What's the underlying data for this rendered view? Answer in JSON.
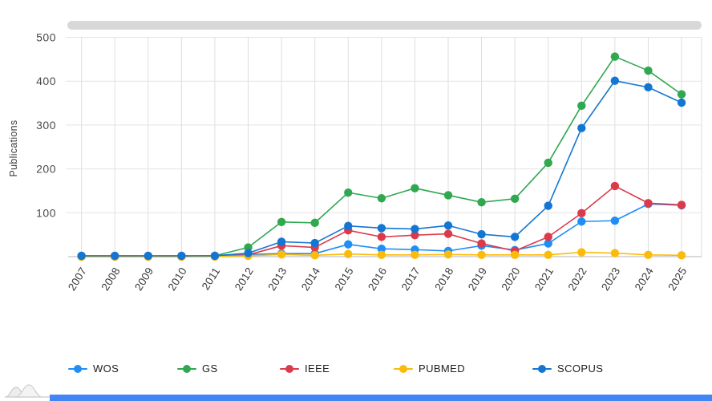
{
  "chart_data": {
    "type": "line",
    "title": "",
    "x": [
      "2007",
      "2008",
      "2009",
      "2010",
      "2011",
      "2012",
      "2013",
      "2014",
      "2015",
      "2016",
      "2017",
      "2018",
      "2019",
      "2020",
      "2021",
      "2022",
      "2023",
      "2024",
      "2025"
    ],
    "series": [
      {
        "name": "WOS",
        "color": "#1f8ef5",
        "values": [
          1,
          1,
          1,
          1,
          1,
          5,
          7,
          7,
          28,
          18,
          16,
          13,
          25,
          15,
          30,
          80,
          82,
          120,
          117
        ]
      },
      {
        "name": "GS",
        "color": "#2fa84f",
        "values": [
          1,
          1,
          1,
          1,
          2,
          21,
          79,
          77,
          146,
          133,
          156,
          140,
          124,
          132,
          214,
          344,
          456,
          424,
          370
        ]
      },
      {
        "name": "IEEE",
        "color": "#dc3a4b",
        "values": [
          0,
          0,
          0,
          0,
          1,
          4,
          25,
          21,
          60,
          45,
          49,
          52,
          30,
          13,
          45,
          99,
          161,
          122,
          118
        ]
      },
      {
        "name": "PUBMED",
        "color": "#fcbb0a",
        "values": [
          0,
          0,
          0,
          0,
          0,
          2,
          5,
          3,
          6,
          4,
          4,
          5,
          4,
          4,
          4,
          10,
          8,
          4,
          3
        ]
      },
      {
        "name": "SCOPUS",
        "color": "#1376d2",
        "values": [
          2,
          2,
          2,
          2,
          2,
          8,
          34,
          31,
          70,
          65,
          63,
          71,
          51,
          45,
          116,
          293,
          401,
          386,
          351
        ]
      }
    ],
    "xlabel": "",
    "ylabel": "Publications",
    "ylim": [
      0,
      520
    ],
    "yticks": [
      100,
      200,
      300,
      400,
      500
    ],
    "grid": true,
    "legend_position": "bottom"
  }
}
